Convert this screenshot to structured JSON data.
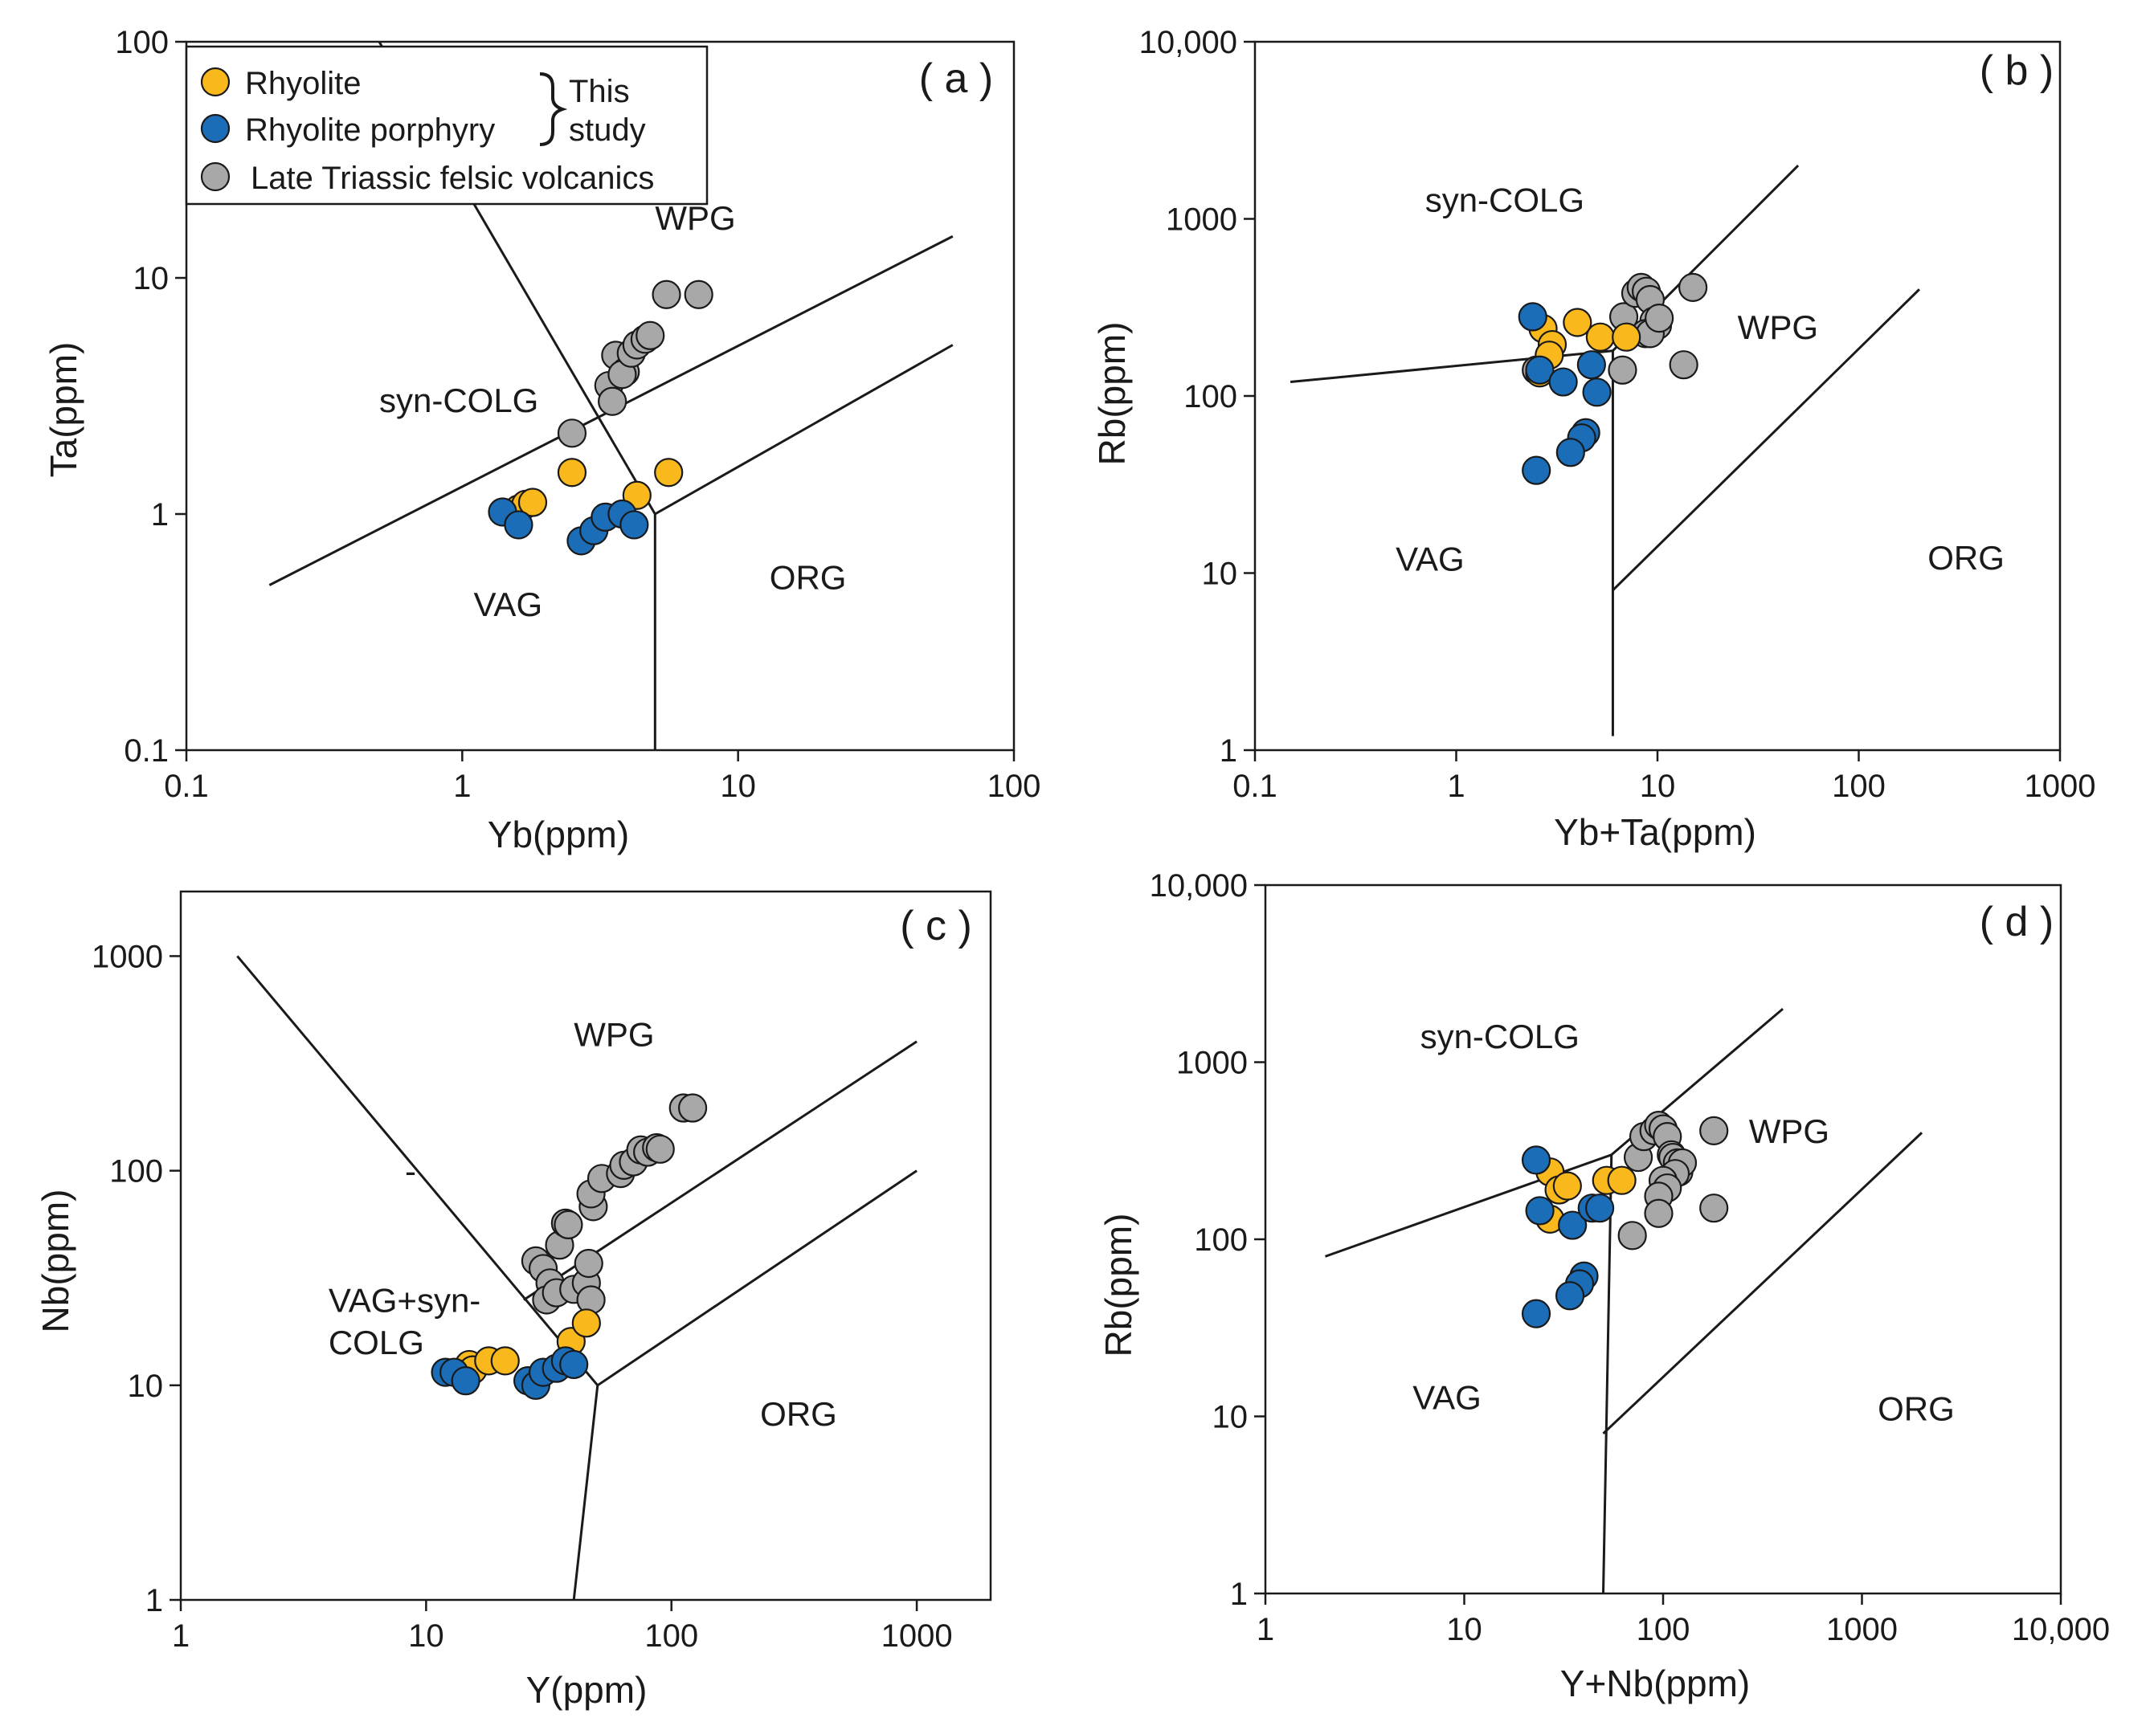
{
  "colors": {
    "rhyolite": "#F9B81C",
    "rhyolite_porphyry": "#1B6DB8",
    "triassic": "#A8A8A8",
    "line": "#1a1a1a"
  },
  "legend": {
    "items": [
      {
        "key": "rhyolite",
        "label": "Rhyolite"
      },
      {
        "key": "rhyolite_porphyry",
        "label": "Rhyolite porphyry"
      },
      {
        "key": "triassic",
        "label": "Late  Triassic felsic volcanics"
      }
    ],
    "brace_label_1": "This",
    "brace_label_2": "study"
  },
  "chart_data": [
    {
      "type": "scatter",
      "panel": "( a )",
      "xlabel": "Yb(ppm)",
      "ylabel": "Ta(ppm)",
      "xscale": "log",
      "yscale": "log",
      "xlim": [
        0.1,
        100
      ],
      "ylim": [
        0.1,
        100
      ],
      "xticks": [
        {
          "v": 0.1,
          "t": "0.1"
        },
        {
          "v": 1,
          "t": "1"
        },
        {
          "v": 10,
          "t": "10"
        },
        {
          "v": 100,
          "t": "100"
        }
      ],
      "yticks": [
        {
          "v": 0.1,
          "t": "0.1"
        },
        {
          "v": 1,
          "t": "1"
        },
        {
          "v": 10,
          "t": "10"
        },
        {
          "v": 100,
          "t": "100"
        }
      ],
      "regions": [
        {
          "text": "WPG",
          "x": 5,
          "y": 16
        },
        {
          "text": "syn-COLG",
          "x": 0.5,
          "y": 2.7
        },
        {
          "text": "VAG",
          "x": 1.1,
          "y": 0.37
        },
        {
          "text": "ORG",
          "x": 13,
          "y": 0.48
        }
      ],
      "boundaries": [
        [
          [
            0.2,
            0.5
          ],
          [
            60,
            15
          ]
        ],
        [
          [
            5,
            1
          ],
          [
            60,
            5.2
          ]
        ],
        [
          [
            5,
            0.1
          ],
          [
            5,
            1
          ]
        ],
        [
          [
            0.5,
            100
          ],
          [
            5,
            1
          ]
        ]
      ],
      "series": [
        {
          "name": "Late Triassic felsic volcanics",
          "key": "triassic",
          "points": [
            [
              2.5,
              2.2
            ],
            [
              3.4,
              3.5
            ],
            [
              3.6,
              4.7
            ],
            [
              3.5,
              3.0
            ],
            [
              3.9,
              4.0
            ],
            [
              3.8,
              3.9
            ],
            [
              4.1,
              4.8
            ],
            [
              4.3,
              5.2
            ],
            [
              4.6,
              5.5
            ],
            [
              4.8,
              5.7
            ],
            [
              5.5,
              8.5
            ],
            [
              7.2,
              8.5
            ]
          ]
        },
        {
          "name": "Rhyolite",
          "key": "rhyolite",
          "points": [
            [
              1.55,
              1.0
            ],
            [
              1.6,
              1.05
            ],
            [
              1.7,
              1.1
            ],
            [
              1.8,
              1.12
            ],
            [
              2.5,
              1.5
            ],
            [
              4.3,
              1.2
            ],
            [
              5.6,
              1.5
            ]
          ]
        },
        {
          "name": "Rhyolite porphyry",
          "key": "rhyolite_porphyry",
          "points": [
            [
              1.4,
              1.02
            ],
            [
              1.6,
              0.9
            ],
            [
              2.7,
              0.77
            ],
            [
              3.0,
              0.85
            ],
            [
              3.3,
              0.97
            ],
            [
              3.8,
              1.0
            ],
            [
              4.2,
              0.9
            ]
          ]
        }
      ]
    },
    {
      "type": "scatter",
      "panel": "( b )",
      "xlabel": "Yb+Ta(ppm)",
      "ylabel": "Rb(ppm)",
      "xscale": "log",
      "yscale": "log",
      "xlim": [
        0.1,
        1000
      ],
      "ylim": [
        1,
        10000
      ],
      "xticks": [
        {
          "v": 0.1,
          "t": "0.1"
        },
        {
          "v": 1,
          "t": "1"
        },
        {
          "v": 10,
          "t": "10"
        },
        {
          "v": 100,
          "t": "100"
        },
        {
          "v": 1000,
          "t": "1000"
        }
      ],
      "yticks": [
        {
          "v": 1,
          "t": "1"
        },
        {
          "v": 10,
          "t": "10"
        },
        {
          "v": 100,
          "t": "100"
        },
        {
          "v": 1000,
          "t": "1000"
        },
        {
          "v": 10000,
          "t": "10,000"
        }
      ],
      "regions": [
        {
          "text": "syn-COLG",
          "x": 0.7,
          "y": 1100
        },
        {
          "text": "WPG",
          "x": 25,
          "y": 210
        },
        {
          "text": "VAG",
          "x": 0.5,
          "y": 10.3
        },
        {
          "text": "ORG",
          "x": 220,
          "y": 10.5
        }
      ],
      "boundaries": [
        [
          [
            0.15,
            120
          ],
          [
            6,
            180
          ]
        ],
        [
          [
            6,
            180
          ],
          [
            50,
            2000
          ]
        ],
        [
          [
            6,
            1.2
          ],
          [
            6,
            180
          ]
        ],
        [
          [
            6,
            8
          ],
          [
            200,
            400
          ]
        ]
      ],
      "series": [
        {
          "name": "Late Triassic felsic volcanics",
          "key": "triassic",
          "points": [
            [
              2.5,
              140
            ],
            [
              6.8,
              280
            ],
            [
              7.8,
              380
            ],
            [
              8.3,
              410
            ],
            [
              8.8,
              390
            ],
            [
              9.2,
              350
            ],
            [
              9.6,
              265
            ],
            [
              10,
              250
            ],
            [
              8.7,
              225
            ],
            [
              9.2,
              225
            ],
            [
              10.2,
              275
            ],
            [
              13.5,
              150
            ],
            [
              15,
              410
            ],
            [
              6.7,
              140
            ]
          ]
        },
        {
          "name": "Rhyolite",
          "key": "rhyolite",
          "points": [
            [
              2.7,
              240
            ],
            [
              3.0,
              195
            ],
            [
              2.9,
              170
            ],
            [
              2.6,
              135
            ],
            [
              4.0,
              260
            ],
            [
              5.2,
              215
            ],
            [
              7.0,
              215
            ]
          ]
        },
        {
          "name": "Rhyolite porphyry",
          "key": "rhyolite_porphyry",
          "points": [
            [
              2.4,
              280
            ],
            [
              2.6,
              140
            ],
            [
              3.4,
              120
            ],
            [
              4.7,
              150
            ],
            [
              5.0,
              105
            ],
            [
              4.4,
              62
            ],
            [
              4.2,
              58
            ],
            [
              3.7,
              48
            ],
            [
              2.5,
              38
            ]
          ]
        }
      ]
    },
    {
      "type": "scatter",
      "panel": "( c )",
      "xlabel": "Y(ppm)",
      "ylabel": "Nb(ppm)",
      "xscale": "log",
      "yscale": "log",
      "xlim": [
        1,
        2000
      ],
      "ylim": [
        1,
        2000
      ],
      "xticks": [
        {
          "v": 1,
          "t": "1"
        },
        {
          "v": 10,
          "t": "10"
        },
        {
          "v": 100,
          "t": "100"
        },
        {
          "v": 1000,
          "t": "1000"
        }
      ],
      "yticks": [
        {
          "v": 1,
          "t": "1"
        },
        {
          "v": 10,
          "t": "10"
        },
        {
          "v": 100,
          "t": "100"
        },
        {
          "v": 1000,
          "t": "1000"
        }
      ],
      "regions": [
        {
          "text": "WPG",
          "x": 40,
          "y": 380
        },
        {
          "text": "VAG+syn-",
          "x": 4.0,
          "y": 22
        },
        {
          "text": "COLG",
          "x": 4.0,
          "y": 14
        },
        {
          "text": "ORG",
          "x": 230,
          "y": 6.5
        },
        {
          "text": "-",
          "x": 8.2,
          "y": 88
        }
      ],
      "boundaries": [
        [
          [
            1.7,
            1000
          ],
          [
            50,
            10
          ]
        ],
        [
          [
            25,
            25
          ],
          [
            1000,
            400
          ]
        ],
        [
          [
            50,
            10
          ],
          [
            1000,
            100
          ]
        ],
        [
          [
            50,
            10
          ],
          [
            40,
            1
          ]
        ]
      ],
      "series": [
        {
          "name": "Late Triassic felsic volcanics",
          "key": "triassic",
          "points": [
            [
              28,
              38
            ],
            [
              30,
              35
            ],
            [
              32,
              30
            ],
            [
              31,
              25
            ],
            [
              34,
              27
            ],
            [
              35,
              45
            ],
            [
              37,
              57
            ],
            [
              38,
              56
            ],
            [
              40,
              28
            ],
            [
              45,
              30
            ],
            [
              46,
              37
            ],
            [
              47,
              25
            ],
            [
              48,
              68
            ],
            [
              47,
              78
            ],
            [
              52,
              92
            ],
            [
              62,
              97
            ],
            [
              64,
              106
            ],
            [
              70,
              110
            ],
            [
              75,
              125
            ],
            [
              80,
              122
            ],
            [
              87,
              128
            ],
            [
              90,
              126
            ],
            [
              112,
              196
            ],
            [
              122,
              196
            ]
          ]
        },
        {
          "name": "Rhyolite",
          "key": "rhyolite",
          "points": [
            [
              15,
              12.5
            ],
            [
              15.5,
              11.8
            ],
            [
              18,
              13
            ],
            [
              21,
              13
            ],
            [
              39,
              16
            ],
            [
              45,
              19.5
            ]
          ]
        },
        {
          "name": "Rhyolite porphyry",
          "key": "rhyolite_porphyry",
          "points": [
            [
              12,
              11.5
            ],
            [
              13,
              11.5
            ],
            [
              14.5,
              10.5
            ],
            [
              26,
              10.5
            ],
            [
              28,
              10
            ],
            [
              30,
              11.5
            ],
            [
              34,
              12
            ],
            [
              37,
              13
            ],
            [
              40,
              12.5
            ]
          ]
        }
      ]
    },
    {
      "type": "scatter",
      "panel": "( d )",
      "xlabel": "Y+Nb(ppm)",
      "ylabel": "Rb(ppm)",
      "xscale": "log",
      "yscale": "log",
      "xlim": [
        1,
        10000
      ],
      "ylim": [
        1,
        10000
      ],
      "xticks": [
        {
          "v": 1,
          "t": "1"
        },
        {
          "v": 10,
          "t": "10"
        },
        {
          "v": 100,
          "t": "100"
        },
        {
          "v": 1000,
          "t": "1000"
        },
        {
          "v": 10000,
          "t": "10,000"
        }
      ],
      "yticks": [
        {
          "v": 1,
          "t": "1"
        },
        {
          "v": 10,
          "t": "10"
        },
        {
          "v": 100,
          "t": "100"
        },
        {
          "v": 1000,
          "t": "1000"
        },
        {
          "v": 10000,
          "t": "10,000"
        }
      ],
      "regions": [
        {
          "text": "syn-COLG",
          "x": 6,
          "y": 1200
        },
        {
          "text": "WPG",
          "x": 270,
          "y": 350
        },
        {
          "text": "VAG",
          "x": 5.5,
          "y": 11
        },
        {
          "text": "ORG",
          "x": 1200,
          "y": 9.5
        }
      ],
      "boundaries": [
        [
          [
            2,
            80
          ],
          [
            55,
            300
          ]
        ],
        [
          [
            55,
            300
          ],
          [
            400,
            2000
          ]
        ],
        [
          [
            55,
            300
          ],
          [
            50,
            1
          ]
        ],
        [
          [
            50,
            8
          ],
          [
            2000,
            400
          ]
        ]
      ],
      "series": [
        {
          "name": "Late Triassic felsic volcanics",
          "key": "triassic",
          "points": [
            [
              75,
              290
            ],
            [
              80,
              380
            ],
            [
              90,
              410
            ],
            [
              95,
              440
            ],
            [
              100,
              420
            ],
            [
              105,
              380
            ],
            [
              110,
              300
            ],
            [
              112,
              290
            ],
            [
              118,
              270
            ],
            [
              120,
              240
            ],
            [
              125,
              270
            ],
            [
              115,
              235
            ],
            [
              100,
              215
            ],
            [
              105,
              195
            ],
            [
              95,
              175
            ],
            [
              95,
              140
            ],
            [
              70,
              105
            ],
            [
              180,
              410
            ],
            [
              180,
              150
            ]
          ]
        },
        {
          "name": "Rhyolite",
          "key": "rhyolite",
          "points": [
            [
              27,
              240
            ],
            [
              30,
              190
            ],
            [
              33,
              200
            ],
            [
              27,
              130
            ],
            [
              52,
              215
            ],
            [
              62,
              215
            ]
          ]
        },
        {
          "name": "Rhyolite porphyry",
          "key": "rhyolite_porphyry",
          "points": [
            [
              23,
              280
            ],
            [
              24,
              145
            ],
            [
              35,
              120
            ],
            [
              44,
              150
            ],
            [
              48,
              150
            ],
            [
              40,
              62
            ],
            [
              38,
              56
            ],
            [
              34,
              48
            ],
            [
              23,
              38
            ]
          ]
        }
      ]
    }
  ]
}
